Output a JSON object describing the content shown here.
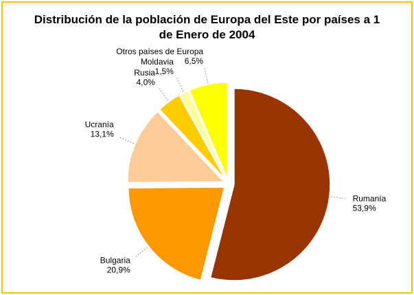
{
  "chart_data": {
    "type": "pie",
    "title": "Distribución de la población de Europa del Este por países a 1 de Enero de 2004",
    "categories": [
      "Rumanía",
      "Bulgaria",
      "Ucranía",
      "Rusia",
      "Moldavia",
      "Otros países de Europa"
    ],
    "values": [
      53.9,
      20.9,
      13.1,
      4.0,
      1.5,
      6.5
    ],
    "value_labels": [
      "53,9%",
      "20,9%",
      "13,1%",
      "4,0%",
      "1,5%",
      "6,5%"
    ],
    "colors": [
      "#993300",
      "#ff9900",
      "#ffcc99",
      "#ffcc00",
      "#ffff99",
      "#ffff00"
    ]
  }
}
